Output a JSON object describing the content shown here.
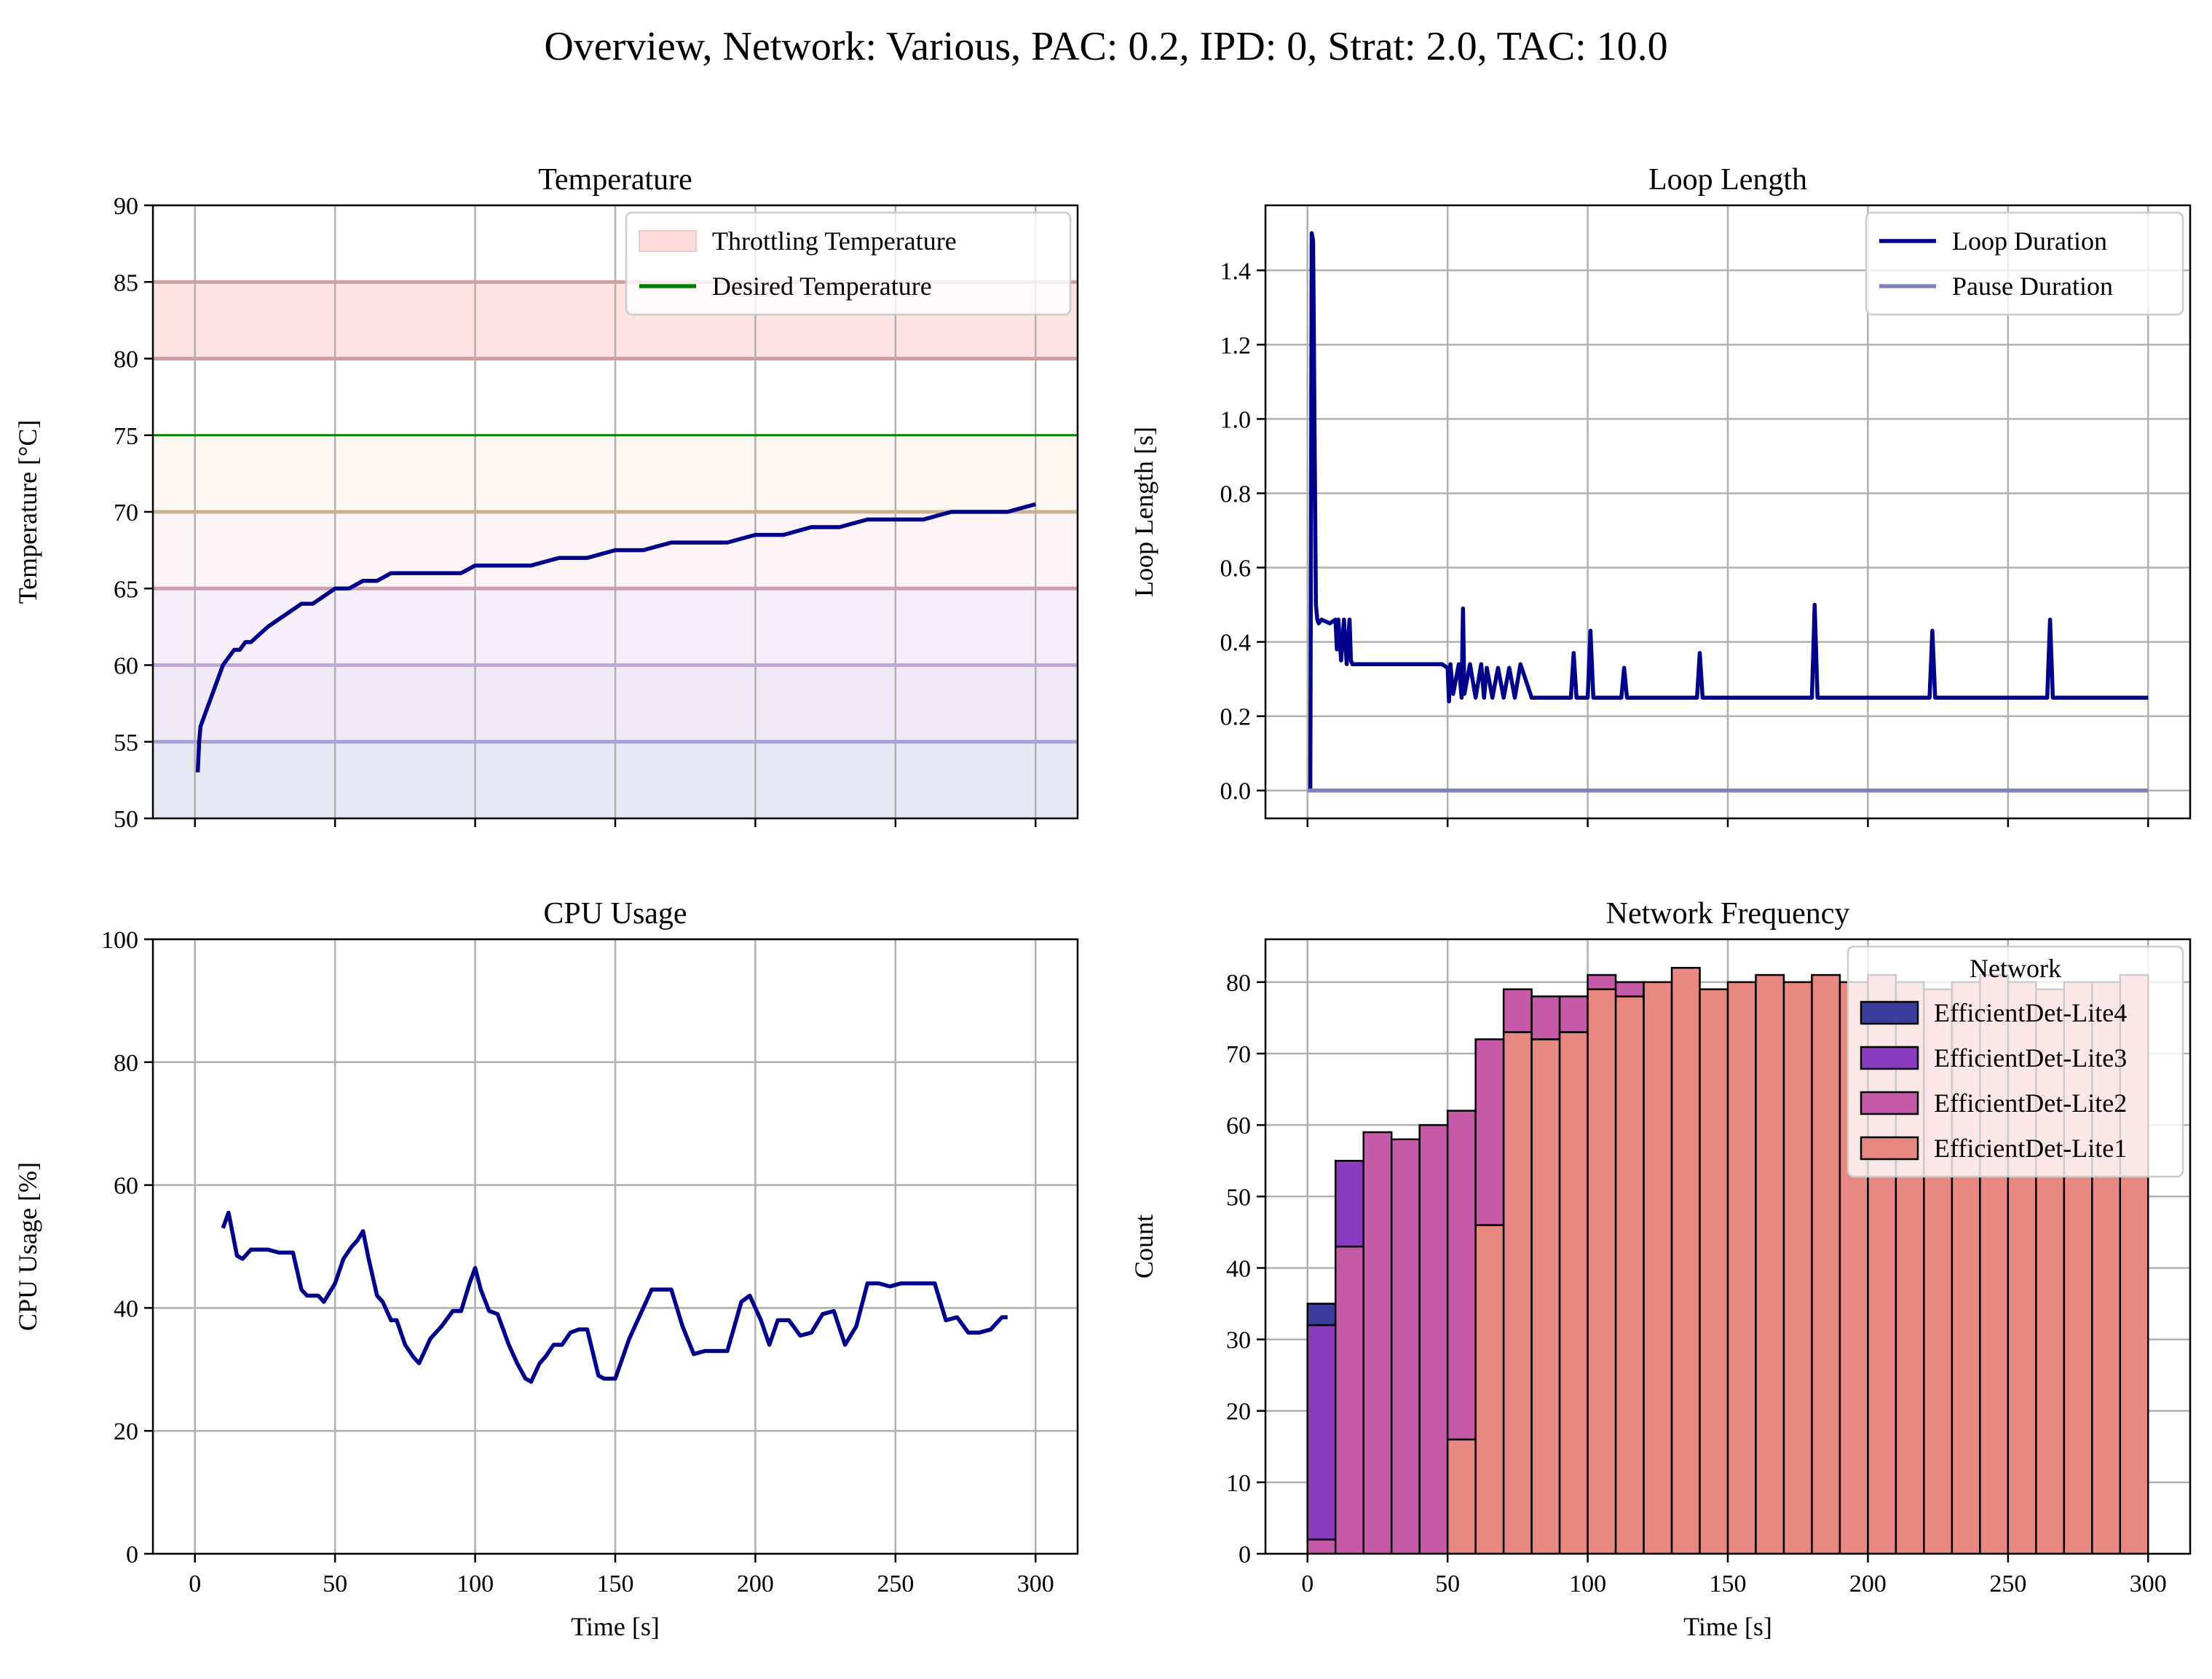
{
  "figure": {
    "title": "Overview, Network: Various, PAC: 0.2, IPD: 0, Strat: 2.0, TAC: 10.0"
  },
  "chart_data": [
    {
      "id": "temperature",
      "type": "line",
      "title": "Temperature",
      "xlabel": "",
      "ylabel": "Temperature [°C]",
      "xlim": [
        -15,
        315
      ],
      "ylim": [
        50,
        90
      ],
      "xticks": [
        0,
        50,
        100,
        150,
        200,
        250,
        300
      ],
      "xtick_labels_visible": false,
      "yticks": [
        50,
        55,
        60,
        65,
        70,
        75,
        80,
        85,
        90
      ],
      "grid": true,
      "legend": {
        "placement": "top-right",
        "entries": [
          {
            "label": "Throttling Temperature",
            "kind": "patch",
            "color": "#ffc0c0"
          },
          {
            "label": "Desired Temperature",
            "kind": "line",
            "color": "#008000"
          }
        ]
      },
      "throttling_band": [
        80,
        85
      ],
      "desired_temperature": 75,
      "bands": [
        {
          "range": [
            50,
            55
          ],
          "color": "#c8cde8"
        },
        {
          "range": [
            55,
            60
          ],
          "color": "#ddd0f0"
        },
        {
          "range": [
            60,
            65
          ],
          "color": "#ebdcf2"
        },
        {
          "range": [
            65,
            70
          ],
          "color": "#f8e4ea"
        },
        {
          "range": [
            70,
            75
          ],
          "color": "#fdeedf"
        }
      ],
      "band_lines": [
        {
          "y": 55,
          "color": "#a8a2d0"
        },
        {
          "y": 60,
          "color": "#c2a8d4"
        },
        {
          "y": 65,
          "color": "#c8a0b0"
        },
        {
          "y": 70,
          "color": "#c8b090"
        },
        {
          "y": 80,
          "color": "#d0a0a0"
        },
        {
          "y": 85,
          "color": "#d0a0a0"
        }
      ],
      "series": [
        {
          "color": "#00008b",
          "x": [
            1,
            1.5,
            2,
            4,
            6,
            8,
            10,
            12,
            14,
            16,
            18,
            20,
            23,
            26,
            30,
            34,
            38,
            42,
            46,
            50,
            55,
            60,
            65,
            70,
            75,
            80,
            85,
            90,
            95,
            100,
            110,
            120,
            130,
            140,
            150,
            160,
            170,
            180,
            190,
            200,
            210,
            220,
            230,
            240,
            250,
            260,
            270,
            280,
            290,
            300
          ],
          "y": [
            53,
            55,
            56,
            57,
            58,
            59,
            60,
            60.5,
            61,
            61,
            61.5,
            61.5,
            62,
            62.5,
            63,
            63.5,
            64,
            64,
            64.5,
            65,
            65,
            65.5,
            65.5,
            66,
            66,
            66,
            66,
            66,
            66,
            66.5,
            66.5,
            66.5,
            67,
            67,
            67.5,
            67.5,
            68,
            68,
            68,
            68.5,
            68.5,
            69,
            69,
            69.5,
            69.5,
            69.5,
            70,
            70,
            70,
            70.5
          ]
        }
      ]
    },
    {
      "id": "loop-length",
      "type": "line",
      "title": "Loop Length",
      "xlabel": "",
      "ylabel": "Loop Length [s]",
      "xlim": [
        -15,
        315
      ],
      "ylim": [
        -0.075,
        1.575
      ],
      "xticks": [
        0,
        50,
        100,
        150,
        200,
        250,
        300
      ],
      "xtick_labels_visible": false,
      "yticks": [
        0.0,
        0.2,
        0.4,
        0.6,
        0.8,
        1.0,
        1.2,
        1.4
      ],
      "ytick_labels": [
        "0.0",
        "0.2",
        "0.4",
        "0.6",
        "0.8",
        "1.0",
        "1.2",
        "1.4"
      ],
      "grid": true,
      "legend": {
        "placement": "top-right",
        "entries": [
          {
            "label": "Loop Duration",
            "kind": "line",
            "color": "#00008b"
          },
          {
            "label": "Pause Duration",
            "kind": "line",
            "color": "#8080c0"
          }
        ]
      },
      "series": [
        {
          "name": "Loop Duration",
          "color": "#00008b",
          "x": [
            1,
            1.5,
            2,
            2.2,
            2.5,
            3,
            3.5,
            4,
            5,
            8,
            10,
            10.5,
            11,
            12,
            13,
            14,
            15,
            15.5,
            16,
            17,
            18,
            20,
            25,
            30,
            35,
            40,
            45,
            48,
            50,
            50.5,
            51,
            52,
            54,
            55,
            55.5,
            56,
            58,
            60,
            62,
            63,
            64,
            66,
            68,
            70,
            72,
            74,
            76,
            80,
            85,
            90,
            94,
            95,
            96,
            98,
            100,
            101,
            102,
            104,
            110,
            112,
            113,
            114,
            120,
            130,
            139,
            140,
            141,
            150,
            160,
            170,
            180,
            181,
            182,
            190,
            200,
            210,
            220,
            222,
            223,
            224,
            230,
            240,
            250,
            260,
            264,
            265,
            266,
            270,
            280,
            290,
            300
          ],
          "y": [
            0,
            1.5,
            1.48,
            1.3,
            1.0,
            0.5,
            0.46,
            0.45,
            0.46,
            0.45,
            0.46,
            0.38,
            0.46,
            0.35,
            0.46,
            0.34,
            0.46,
            0.35,
            0.34,
            0.34,
            0.34,
            0.34,
            0.34,
            0.34,
            0.34,
            0.34,
            0.34,
            0.34,
            0.33,
            0.24,
            0.34,
            0.26,
            0.34,
            0.25,
            0.49,
            0.26,
            0.34,
            0.25,
            0.34,
            0.25,
            0.33,
            0.25,
            0.33,
            0.25,
            0.33,
            0.25,
            0.34,
            0.25,
            0.25,
            0.25,
            0.25,
            0.37,
            0.25,
            0.25,
            0.25,
            0.43,
            0.25,
            0.25,
            0.25,
            0.25,
            0.33,
            0.25,
            0.25,
            0.25,
            0.25,
            0.37,
            0.25,
            0.25,
            0.25,
            0.25,
            0.25,
            0.5,
            0.25,
            0.25,
            0.25,
            0.25,
            0.25,
            0.25,
            0.43,
            0.25,
            0.25,
            0.25,
            0.25,
            0.25,
            0.25,
            0.46,
            0.25,
            0.25,
            0.25,
            0.25,
            0.25
          ]
        },
        {
          "name": "Pause Duration",
          "color": "#8080c0",
          "x": [
            0,
            300
          ],
          "y": [
            0,
            0
          ]
        }
      ]
    },
    {
      "id": "cpu-usage",
      "type": "line",
      "title": "CPU Usage",
      "xlabel": "Time [s]",
      "ylabel": "CPU Usage [%]",
      "xlim": [
        -15,
        315
      ],
      "ylim": [
        0,
        100
      ],
      "xticks": [
        0,
        50,
        100,
        150,
        200,
        250,
        300
      ],
      "xtick_labels_visible": true,
      "yticks": [
        0,
        20,
        40,
        60,
        80,
        100
      ],
      "grid": true,
      "series": [
        {
          "color": "#00008b",
          "x": [
            10,
            12,
            15,
            17,
            20,
            23,
            26,
            30,
            35,
            38,
            40,
            44,
            46,
            50,
            53,
            56,
            58,
            60,
            62,
            65,
            67,
            70,
            72,
            75,
            78,
            80,
            84,
            88,
            92,
            95,
            98,
            100,
            102,
            105,
            108,
            112,
            115,
            118,
            120,
            123,
            125,
            128,
            131,
            134,
            137,
            140,
            144,
            146,
            150,
            155,
            160,
            163,
            166,
            170,
            174,
            178,
            182,
            186,
            190,
            195,
            198,
            202,
            205,
            208,
            212,
            216,
            220,
            224,
            228,
            232,
            236,
            240,
            244,
            248,
            252,
            256,
            260,
            264,
            268,
            272,
            276,
            280,
            284,
            288,
            290
          ],
          "y": [
            53,
            55.5,
            48.5,
            48,
            49.5,
            49.5,
            49.5,
            49,
            49,
            43,
            42,
            42,
            41,
            44,
            48,
            50,
            51,
            52.5,
            48,
            42,
            41,
            38,
            38,
            34,
            32,
            31,
            35,
            37,
            39.5,
            39.5,
            44,
            46.5,
            43,
            39.5,
            39,
            34,
            31,
            28.5,
            28,
            31,
            32,
            34,
            34,
            36,
            36.5,
            36.5,
            29,
            28.5,
            28.5,
            35,
            40,
            43,
            43,
            43,
            37,
            32.5,
            33,
            33,
            33,
            41,
            42,
            38,
            34,
            38,
            38,
            35.5,
            36,
            39,
            39.5,
            34,
            37,
            44,
            44,
            43.5,
            44,
            44,
            44,
            44,
            38,
            38.5,
            36,
            36,
            36.5,
            38.5,
            38.5
          ]
        }
      ]
    },
    {
      "id": "network-frequency",
      "type": "bar",
      "stacked": true,
      "title": "Network Frequency",
      "xlabel": "Time [s]",
      "ylabel": "Count",
      "xlim": [
        -15,
        315
      ],
      "ylim": [
        0,
        86
      ],
      "xticks": [
        0,
        50,
        100,
        150,
        200,
        250,
        300
      ],
      "xtick_labels_visible": true,
      "yticks": [
        0,
        10,
        20,
        30,
        40,
        50,
        60,
        70,
        80
      ],
      "grid": true,
      "bin_width": 10,
      "bin_starts": [
        0,
        10,
        20,
        30,
        40,
        50,
        60,
        70,
        80,
        90,
        100,
        110,
        120,
        130,
        140,
        150,
        160,
        170,
        180,
        190,
        200,
        210,
        220,
        230,
        240,
        250,
        260,
        270,
        280,
        290
      ],
      "legend": {
        "placement": "top-right",
        "title": "Network",
        "entries": [
          {
            "label": "EfficientDet-Lite4",
            "color": "#3c3c9c"
          },
          {
            "label": "EfficientDet-Lite3",
            "color": "#8a3cc0"
          },
          {
            "label": "EfficientDet-Lite2",
            "color": "#c45aa8"
          },
          {
            "label": "EfficientDet-Lite1",
            "color": "#e88882"
          }
        ]
      },
      "series": [
        {
          "name": "EfficientDet-Lite1",
          "color": "#e88882",
          "values": [
            0,
            0,
            0,
            0,
            0,
            16,
            46,
            73,
            72,
            73,
            79,
            78,
            80,
            82,
            79,
            80,
            81,
            80,
            81,
            80,
            81,
            80,
            79,
            80,
            81,
            80,
            79,
            80,
            80,
            81
          ]
        },
        {
          "name": "EfficientDet-Lite2",
          "color": "#c45aa8",
          "values": [
            2,
            43,
            59,
            58,
            60,
            46,
            26,
            6,
            6,
            5,
            2,
            2,
            0,
            0,
            0,
            0,
            0,
            0,
            0,
            0,
            0,
            0,
            0,
            0,
            0,
            0,
            0,
            0,
            0,
            0
          ]
        },
        {
          "name": "EfficientDet-Lite3",
          "color": "#8a3cc0",
          "values": [
            30,
            12,
            0,
            0,
            0,
            0,
            0,
            0,
            0,
            0,
            0,
            0,
            0,
            0,
            0,
            0,
            0,
            0,
            0,
            0,
            0,
            0,
            0,
            0,
            0,
            0,
            0,
            0,
            0,
            0
          ]
        },
        {
          "name": "EfficientDet-Lite4",
          "color": "#3c3c9c",
          "values": [
            3,
            0,
            0,
            0,
            0,
            0,
            0,
            0,
            0,
            0,
            0,
            0,
            0,
            0,
            0,
            0,
            0,
            0,
            0,
            0,
            0,
            0,
            0,
            0,
            0,
            0,
            0,
            0,
            0,
            0
          ]
        }
      ]
    }
  ]
}
